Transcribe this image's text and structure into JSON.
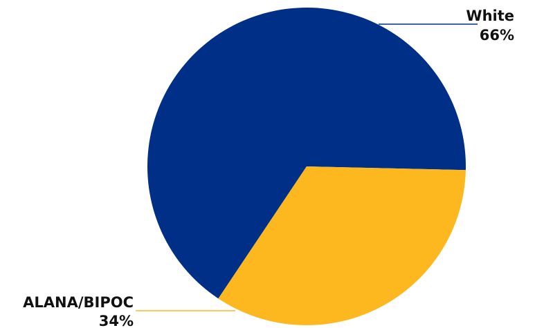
{
  "chart_data": {
    "type": "pie",
    "slices": [
      {
        "label": "White",
        "value": 66,
        "value_label": "66%",
        "color": "#002F87"
      },
      {
        "label": "ALANA/BIPOC",
        "value": 34,
        "value_label": "34%",
        "color": "#FDB71F"
      }
    ],
    "title": "",
    "legend": "none"
  }
}
